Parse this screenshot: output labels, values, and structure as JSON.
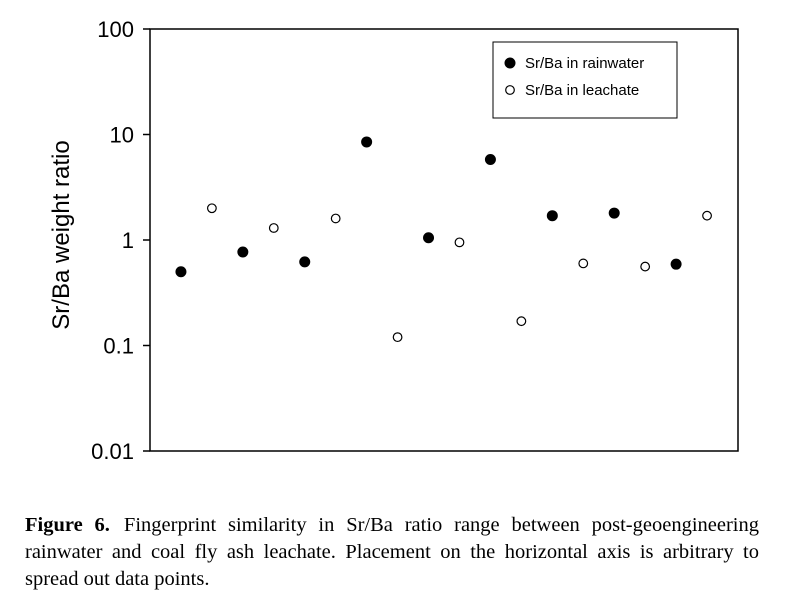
{
  "chart_data": {
    "type": "scatter",
    "ylabel": "Sr/Ba weight ratio",
    "xlabel": "",
    "yscale": "log",
    "ylim": [
      0.01,
      100
    ],
    "y_ticks": [
      "0.01",
      "0.1",
      "1",
      "10",
      "100"
    ],
    "y_tick_values": [
      0.01,
      0.1,
      1,
      10,
      100
    ],
    "x_ticks": [],
    "grid": false,
    "legend_position": "top-right",
    "series": [
      {
        "name": "Sr/Ba in rainwater",
        "marker": "filled-circle",
        "color": "#000000",
        "x": [
          1,
          3,
          5,
          7,
          9,
          11,
          13,
          15,
          17
        ],
        "y": [
          0.5,
          0.77,
          0.62,
          8.5,
          1.05,
          5.8,
          1.7,
          1.8,
          0.59
        ]
      },
      {
        "name": "Sr/Ba in leachate",
        "marker": "open-circle",
        "color": "#000000",
        "x": [
          2,
          4,
          6,
          8,
          10,
          12,
          14,
          16,
          18
        ],
        "y": [
          2.0,
          1.3,
          1.6,
          0.12,
          0.95,
          0.17,
          0.6,
          0.56,
          1.7
        ]
      }
    ]
  },
  "caption": {
    "label": "Figure 6.",
    "text": "Fingerprint similarity in Sr/Ba ratio range between post-geoengineering rainwater and coal fly ash leachate. Placement on the horizontal axis is arbitrary to spread out data points."
  }
}
